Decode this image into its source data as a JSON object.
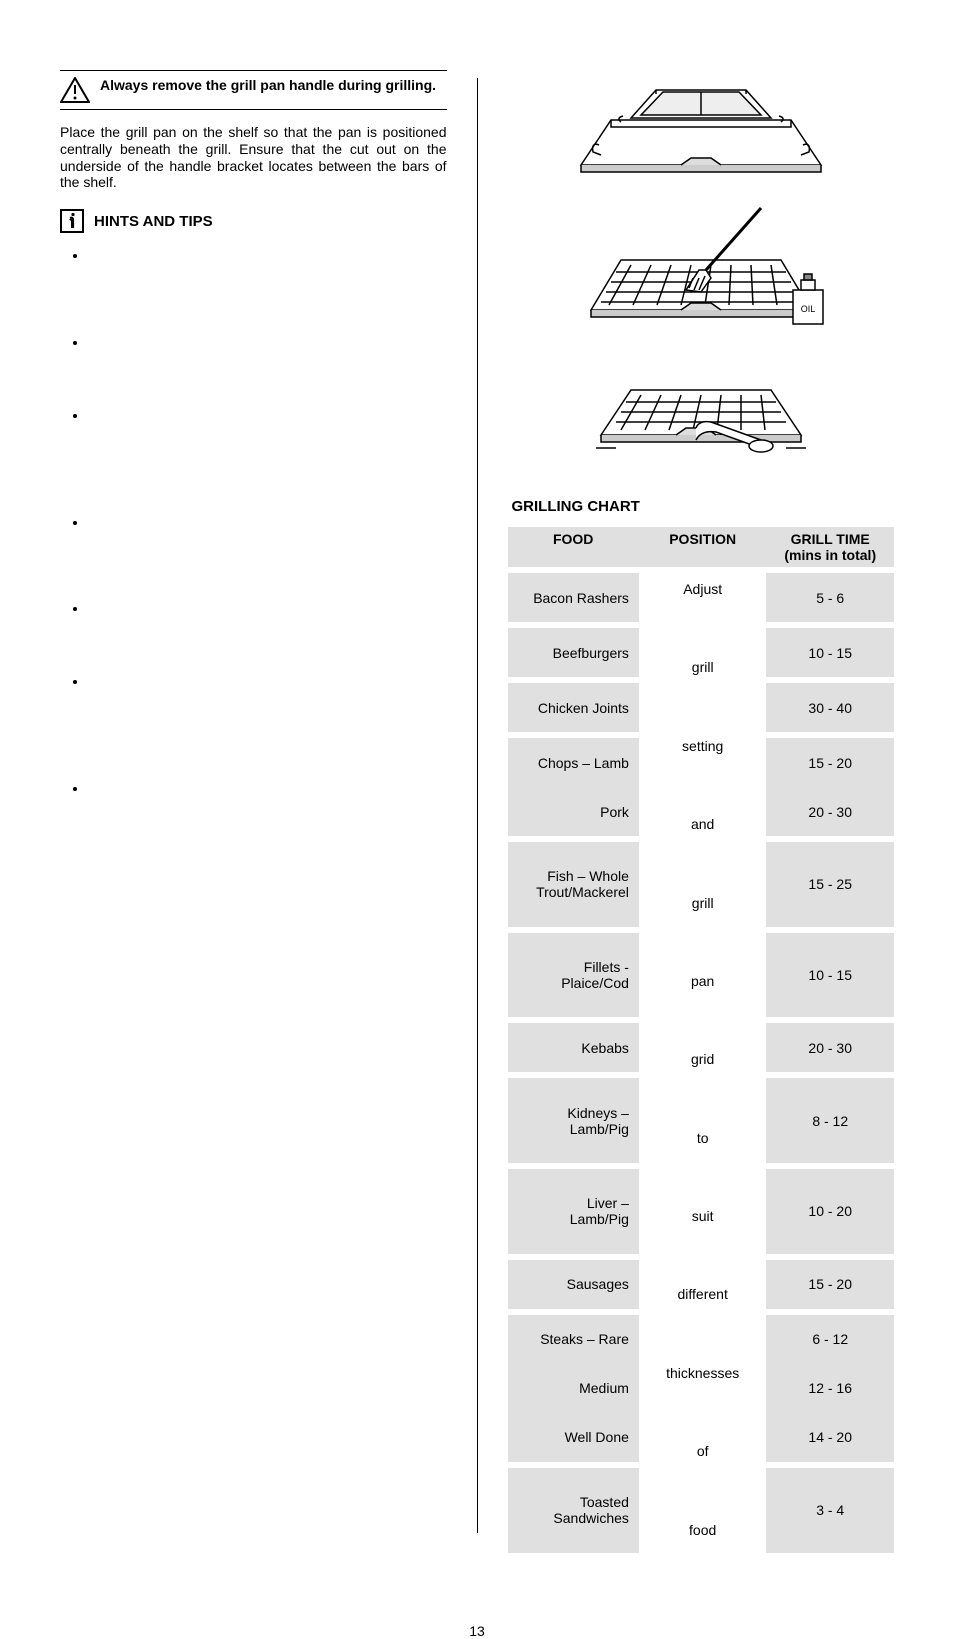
{
  "warning": "Always remove the grill pan handle during grilling.",
  "body_text": "Place the grill pan on the shelf so that the pan is positioned centrally beneath the grill.  Ensure that the cut out on the underside of the handle bracket locates between the bars of the shelf.",
  "tips_title": "HINTS AND TIPS",
  "bullets": [
    "",
    "",
    "",
    "",
    "",
    "",
    ""
  ],
  "oil_label": "OIL",
  "chart_title": "GRILLING CHART",
  "chart": {
    "headers": {
      "food": "FOOD",
      "position": "POSITION",
      "time_l1": "GRILL TIME",
      "time_l2": "(mins in total)"
    },
    "position_text": "Adjust grill setting and grill pan grid to suit different thicknesses of food",
    "rows": [
      {
        "food": "Bacon Rashers",
        "time": "5 - 6"
      },
      {
        "food": "Beefburgers",
        "time": "10 - 15"
      },
      {
        "food": "Chicken Joints",
        "time": "30 - 40"
      },
      {
        "food": "Chops – Lamb",
        "time": "15 - 20"
      },
      {
        "food": "Pork",
        "time": "20 - 30",
        "nosep": true
      },
      {
        "food": "Fish – Whole Trout/Mackerel",
        "time": "15 - 25"
      },
      {
        "food": "Fillets - Plaice/Cod",
        "time": "10 - 15"
      },
      {
        "food": "Kebabs",
        "time": "20 - 30"
      },
      {
        "food": "Kidneys – Lamb/Pig",
        "time": "8 - 12"
      },
      {
        "food": "Liver – Lamb/Pig",
        "time": "10 - 20"
      },
      {
        "food": "Sausages",
        "time": "15 - 20"
      },
      {
        "food": "Steaks – Rare",
        "time": "6 - 12"
      },
      {
        "food": "Medium",
        "time": "12 - 16",
        "nosep": true
      },
      {
        "food": "Well Done",
        "time": "14 - 20",
        "nosep": true
      },
      {
        "food": "Toasted Sandwiches",
        "time": "3 - 4"
      }
    ],
    "header_bg": "#e0e0e0",
    "cell_bg": "#e0e0e0",
    "sep_bg": "#ffffff"
  },
  "page_number": "13"
}
